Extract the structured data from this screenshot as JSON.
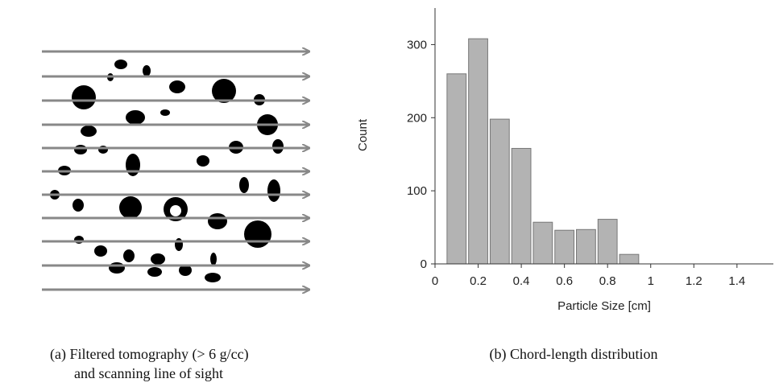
{
  "figure_a": {
    "caption": [
      "(a)  Filtered tomography (> 6 g/cc)",
      "and scanning line of sight"
    ]
  },
  "chart_data": {
    "type": "histogram",
    "xlabel": "Particle Size [cm]",
    "ylabel": "Count",
    "bins": [
      0.05,
      0.15,
      0.25,
      0.35,
      0.45,
      0.55,
      0.65,
      0.75,
      0.85,
      0.95
    ],
    "values": [
      260,
      308,
      198,
      158,
      57,
      46,
      47,
      61,
      13
    ],
    "color": "#b3b3b3",
    "xlim": [
      0,
      1.55
    ],
    "ylim": [
      0,
      350
    ],
    "xticks": [
      0,
      0.2,
      0.4,
      0.6,
      0.8,
      1,
      1.2,
      1.4
    ],
    "yticks": [
      0,
      100,
      200,
      300
    ],
    "caption": "(b) Chord-length distribution"
  }
}
